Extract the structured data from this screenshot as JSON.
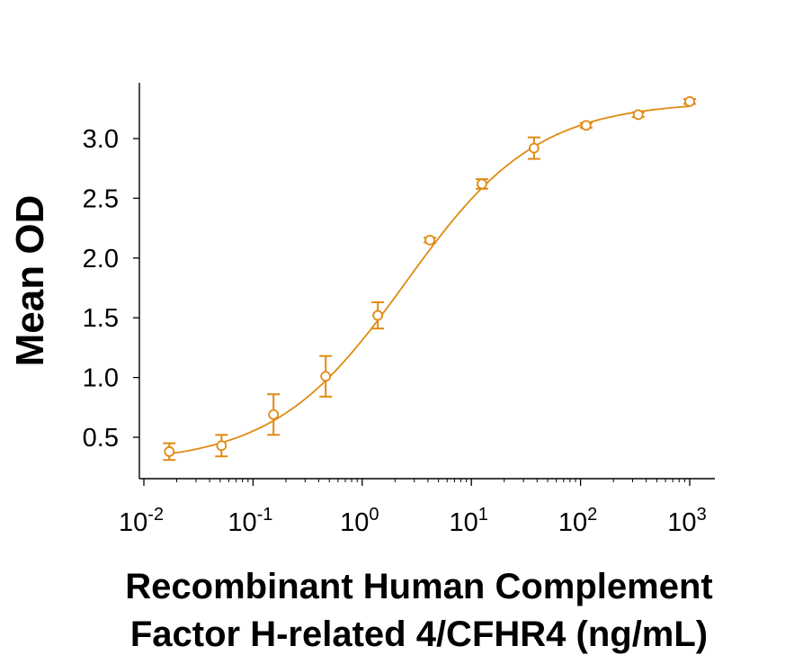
{
  "chart_data": {
    "type": "scatter",
    "title": "",
    "xlabel": "Recombinant Human Complement Factor H-related 4/CFHR4 (ng/mL)",
    "xlabel_lines": [
      "Recombinant Human Complement",
      "Factor H-related 4/CFHR4 (ng/mL)"
    ],
    "ylabel": "Mean OD",
    "xscale": "log",
    "xlim": [
      0.01,
      1000
    ],
    "ylim": [
      0.2,
      3.5
    ],
    "x_ticks": [
      {
        "value": 0.01,
        "base": "10",
        "exp": "-2"
      },
      {
        "value": 0.1,
        "base": "10",
        "exp": "-1"
      },
      {
        "value": 1,
        "base": "10",
        "exp": "0"
      },
      {
        "value": 10,
        "base": "10",
        "exp": "1"
      },
      {
        "value": 100,
        "base": "10",
        "exp": "2"
      },
      {
        "value": 1000,
        "base": "10",
        "exp": "3"
      }
    ],
    "y_ticks": [
      {
        "value": 0.5,
        "label": "0.5"
      },
      {
        "value": 1.0,
        "label": "1.0"
      },
      {
        "value": 1.5,
        "label": "1.5"
      },
      {
        "value": 2.0,
        "label": "2.0"
      },
      {
        "value": 2.5,
        "label": "2.5"
      },
      {
        "value": 3.0,
        "label": "3.0"
      }
    ],
    "grid": false,
    "legend": "none",
    "color": "#E08A12",
    "series": [
      {
        "x": [
          0.0171,
          0.0514,
          0.154,
          0.463,
          1.39,
          4.17,
          12.5,
          37.5,
          112.5,
          337.5,
          1000
        ],
        "y": [
          0.38,
          0.43,
          0.69,
          1.01,
          1.52,
          2.15,
          2.62,
          2.92,
          3.11,
          3.2,
          3.31
        ],
        "err": [
          0.07,
          0.09,
          0.17,
          0.17,
          0.11,
          0.02,
          0.04,
          0.09,
          0.02,
          0.02,
          0.02
        ]
      }
    ],
    "fit": {
      "model": "4PL",
      "bottom": 0.28,
      "top": 3.31,
      "ec50": 2.5,
      "hill": 0.72
    }
  }
}
